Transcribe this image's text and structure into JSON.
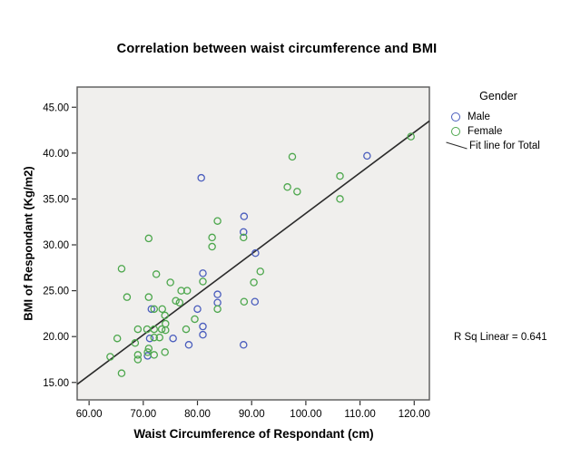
{
  "title": "Correlation between waist circumference and BMI",
  "legend": {
    "title": "Gender",
    "items": [
      {
        "label": "Male",
        "marker": "circle",
        "color": "#4a5dbd"
      },
      {
        "label": "Female",
        "marker": "circle",
        "color": "#4da74d"
      },
      {
        "label": "Fit line for Total",
        "marker": "line",
        "color": "#2b2b2b"
      }
    ]
  },
  "annotation": "R Sq Linear = 0.641",
  "colors": {
    "male": "#4a5dbd",
    "female": "#4da74d",
    "fit_line": "#2b2b2b",
    "plot_background": "#f0efed",
    "plot_border": "#595959",
    "tick": "#333333"
  },
  "chart_data": {
    "type": "scatter",
    "title": "Correlation between waist circumference and BMI",
    "xlabel": "Waist Circumference of Respondant (cm)",
    "ylabel": "BMI of Respondant (Kg/m2)",
    "xticks": [
      60,
      70,
      80,
      90,
      100,
      110,
      120
    ],
    "yticks": [
      15,
      20,
      25,
      30,
      35,
      40,
      45
    ],
    "tick_decimals": 2,
    "xlim": [
      57.8,
      122.8
    ],
    "ylim": [
      13.1,
      47.2
    ],
    "grid": false,
    "legend_position": "right",
    "series": [
      {
        "name": "Male",
        "color": "#4a5dbd",
        "points": [
          [
            80.7,
            37.3
          ],
          [
            111.3,
            39.7
          ],
          [
            88.6,
            33.1
          ],
          [
            88.5,
            31.4
          ],
          [
            90.7,
            29.1
          ],
          [
            81,
            26.9
          ],
          [
            83.7,
            24.6
          ],
          [
            83.7,
            23.7
          ],
          [
            90.6,
            23.8
          ],
          [
            80,
            23
          ],
          [
            71.5,
            23
          ],
          [
            81,
            21.1
          ],
          [
            81,
            20.2
          ],
          [
            75.5,
            19.8
          ],
          [
            71.2,
            19.8
          ],
          [
            78.4,
            19.1
          ],
          [
            88.5,
            19.1
          ],
          [
            70.8,
            17.9
          ]
        ]
      },
      {
        "name": "Female",
        "color": "#4da74d",
        "points": [
          [
            119.4,
            41.8
          ],
          [
            97.5,
            39.6
          ],
          [
            106.3,
            37.5
          ],
          [
            96.6,
            36.3
          ],
          [
            98.4,
            35.8
          ],
          [
            106.3,
            35.0
          ],
          [
            83.7,
            32.6
          ],
          [
            88.5,
            30.8
          ],
          [
            82.7,
            30.8
          ],
          [
            82.7,
            29.8
          ],
          [
            71.0,
            30.7
          ],
          [
            91.6,
            27.1
          ],
          [
            66.0,
            27.4
          ],
          [
            72.4,
            26.8
          ],
          [
            75.0,
            25.9
          ],
          [
            81.0,
            26.0
          ],
          [
            90.4,
            25.9
          ],
          [
            77.0,
            25.0
          ],
          [
            78.1,
            25.0
          ],
          [
            67.0,
            24.3
          ],
          [
            71.0,
            24.3
          ],
          [
            76.0,
            23.9
          ],
          [
            76.7,
            23.7
          ],
          [
            88.6,
            23.8
          ],
          [
            83.7,
            23.0
          ],
          [
            72.0,
            23.0
          ],
          [
            73.5,
            23.0
          ],
          [
            74.0,
            22.3
          ],
          [
            79.5,
            21.9
          ],
          [
            74.1,
            21.4
          ],
          [
            77.9,
            20.8
          ],
          [
            69.0,
            20.8
          ],
          [
            70.7,
            20.8
          ],
          [
            72.0,
            20.8
          ],
          [
            73.4,
            20.8
          ],
          [
            74.1,
            20.7
          ],
          [
            65.2,
            19.8
          ],
          [
            72.0,
            19.9
          ],
          [
            73.0,
            19.9
          ],
          [
            68.5,
            19.3
          ],
          [
            71.0,
            18.7
          ],
          [
            63.9,
            17.8
          ],
          [
            69.0,
            18.0
          ],
          [
            69.0,
            17.5
          ],
          [
            70.8,
            18.3
          ],
          [
            72.0,
            18.0
          ],
          [
            74.0,
            18.3
          ],
          [
            66.0,
            16.0
          ]
        ]
      }
    ],
    "fit_line": {
      "name": "Fit line for Total",
      "color": "#2b2b2b",
      "x": [
        57.8,
        122.8
      ],
      "y": [
        14.8,
        43.5
      ],
      "r_sq": 0.641
    }
  }
}
